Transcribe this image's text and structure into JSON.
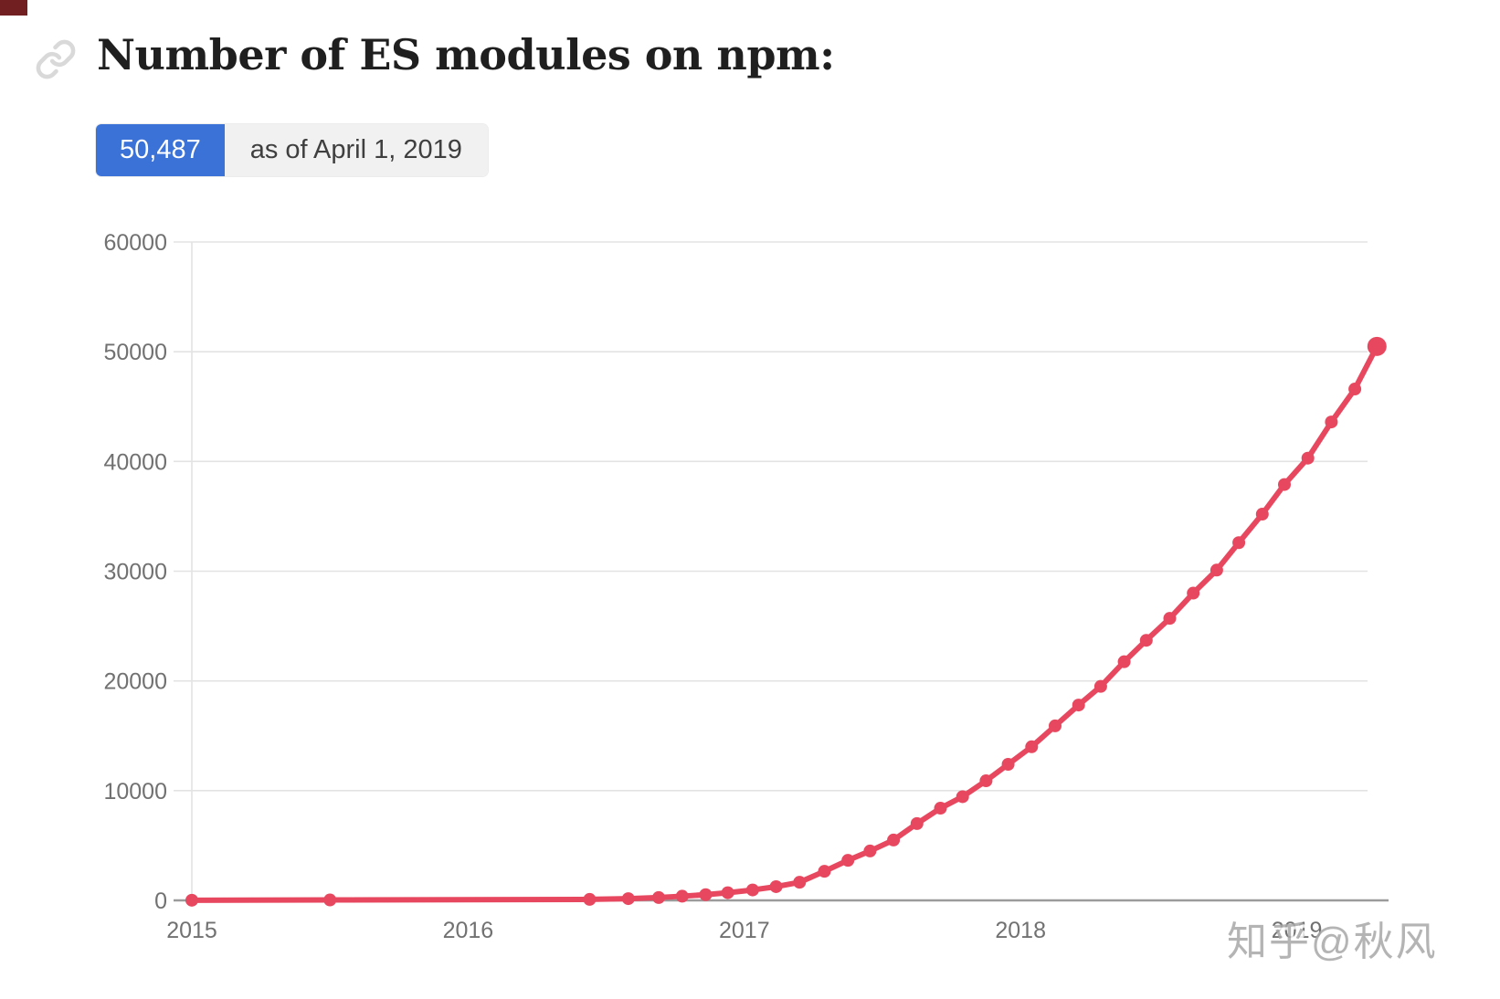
{
  "header": {
    "title": "Number of ES modules on npm:",
    "link_icon": "link-icon"
  },
  "badge": {
    "count": "50,487",
    "caption": "as of April 1, 2019",
    "count_bg": "#3b72d8",
    "count_text_color": "#ffffff",
    "caption_bg": "#f1f1f2"
  },
  "chart_data": {
    "type": "line",
    "title": "Number of ES modules on npm",
    "xlabel": "",
    "ylabel": "",
    "x_tick_labels": [
      "2015",
      "2016",
      "2017",
      "2018",
      "2019"
    ],
    "x_tick_years": [
      2015,
      2016,
      2017,
      2018,
      2019
    ],
    "y_ticks": [
      0,
      10000,
      20000,
      30000,
      40000,
      50000,
      60000
    ],
    "ylim": [
      0,
      60000
    ],
    "xlim": [
      2015,
      2019.35
    ],
    "grid": "horizontal",
    "legend": "none",
    "line_color": "#e8485f",
    "grid_color": "#e3e3e3",
    "axis_color": "#9b9b9b",
    "tick_label_color": "#717171",
    "series": [
      {
        "name": "ES modules on npm",
        "points": [
          [
            2015.0,
            15
          ],
          [
            2015.5,
            40
          ],
          [
            2016.44,
            90
          ],
          [
            2016.58,
            160
          ],
          [
            2016.69,
            260
          ],
          [
            2016.775,
            380
          ],
          [
            2016.86,
            520
          ],
          [
            2016.94,
            700
          ],
          [
            2017.03,
            950
          ],
          [
            2017.115,
            1250
          ],
          [
            2017.2,
            1650
          ],
          [
            2017.29,
            2650
          ],
          [
            2017.375,
            3650
          ],
          [
            2017.455,
            4500
          ],
          [
            2017.54,
            5500
          ],
          [
            2017.625,
            7000
          ],
          [
            2017.71,
            8400
          ],
          [
            2017.79,
            9450
          ],
          [
            2017.875,
            10900
          ],
          [
            2017.955,
            12400
          ],
          [
            2018.04,
            14000
          ],
          [
            2018.125,
            15900
          ],
          [
            2018.21,
            17800
          ],
          [
            2018.29,
            19500
          ],
          [
            2018.375,
            21750
          ],
          [
            2018.455,
            23700
          ],
          [
            2018.54,
            25700
          ],
          [
            2018.625,
            28000
          ],
          [
            2018.71,
            30100
          ],
          [
            2018.79,
            32600
          ],
          [
            2018.875,
            35200
          ],
          [
            2018.955,
            37900
          ],
          [
            2019.04,
            40300
          ],
          [
            2019.125,
            43600
          ],
          [
            2019.21,
            46600
          ],
          [
            2019.29,
            50487
          ]
        ]
      }
    ],
    "final_value_label": "50,487",
    "as_of": "April 1, 2019"
  },
  "watermark": {
    "text": "知乎@秋风"
  }
}
